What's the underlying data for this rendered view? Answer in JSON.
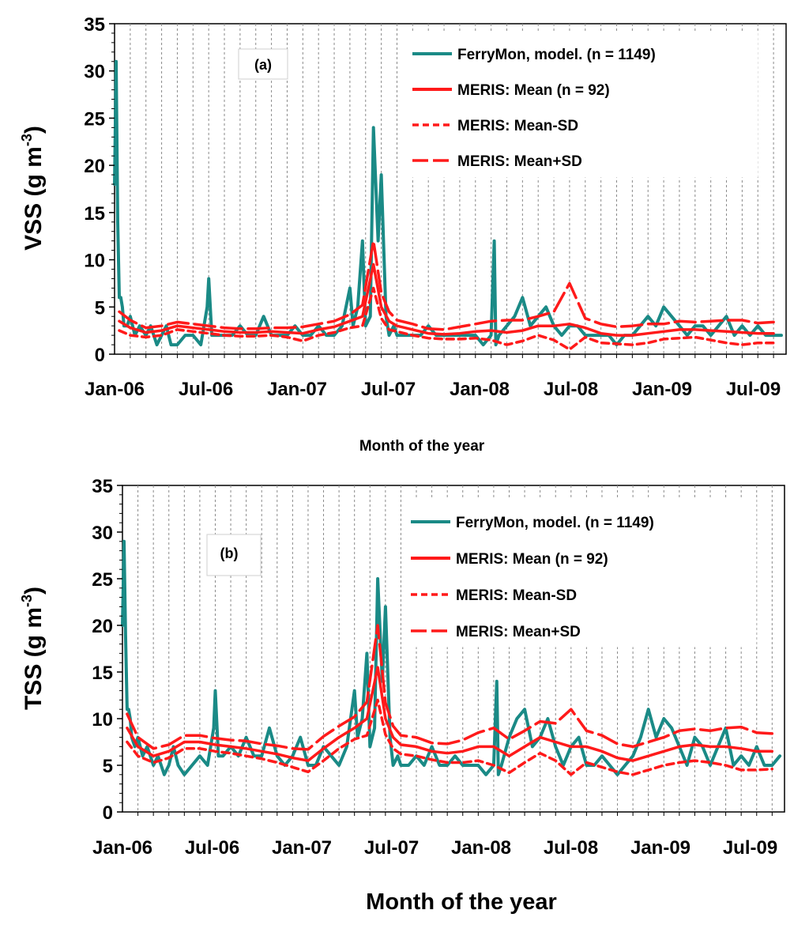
{
  "chart_data": [
    {
      "type": "line",
      "panel_label": "(a)",
      "ylabel_main": "VSS (g m",
      "ylabel_exp": "-3",
      "ylabel_close": ")",
      "xlabel": "Month of the year",
      "ylim": [
        0,
        35
      ],
      "yticks": [
        0,
        5,
        10,
        15,
        20,
        25,
        30,
        35
      ],
      "xlim": [
        0,
        42.8
      ],
      "xtick_labels": [
        "Jan-06",
        "Jul-06",
        "Jan-07",
        "Jul-07",
        "Jan-08",
        "Jul-08",
        "Jan-09",
        "Jul-09"
      ],
      "grid": true,
      "legend": [
        {
          "label": "FerryMon, model. (n = 1149)",
          "color": "#1a8a86",
          "style": "solid"
        },
        {
          "label": "MERIS: Mean (n = 92)",
          "color": "#ff1a1a",
          "style": "solid"
        },
        {
          "label": "MERIS: Mean-SD",
          "color": "#ff1a1a",
          "style": "dashed"
        },
        {
          "label": "MERIS: Mean+SD",
          "color": "#ff1a1a",
          "style": "longdash"
        }
      ],
      "series": [
        {
          "name": "FerryMon, model. (n = 1149)",
          "color": "#1a8a86",
          "x": [
            0.0,
            0.1,
            0.2,
            0.3,
            0.4,
            0.5,
            0.6,
            0.8,
            1.0,
            1.3,
            1.6,
            2.0,
            2.3,
            2.7,
            3.0,
            3.3,
            3.6,
            4.0,
            4.5,
            5.0,
            5.5,
            5.9,
            6.0,
            6.2,
            6.5,
            7.0,
            7.5,
            8.0,
            8.5,
            9.0,
            9.5,
            10.0,
            10.5,
            11.0,
            11.5,
            12.0,
            12.5,
            13.0,
            13.5,
            14.0,
            14.5,
            15.0,
            15.2,
            15.5,
            15.8,
            16.0,
            16.3,
            16.5,
            16.8,
            17.0,
            17.3,
            17.5,
            17.8,
            18.0,
            18.5,
            19.0,
            19.5,
            20.0,
            20.5,
            21.0,
            21.5,
            22.0,
            22.5,
            23.0,
            23.5,
            24.0,
            24.2,
            24.3,
            24.5,
            25.0,
            25.5,
            26.0,
            26.5,
            27.0,
            27.5,
            28.0,
            28.5,
            29.0,
            29.5,
            30.0,
            30.5,
            31.0,
            31.5,
            32.0,
            32.5,
            33.0,
            33.5,
            34.0,
            34.5,
            35.0,
            35.5,
            36.0,
            36.5,
            37.0,
            37.5,
            38.0,
            38.5,
            39.0,
            39.5,
            40.0,
            40.5,
            41.0,
            41.5,
            42.0,
            42.5
          ],
          "y": [
            18,
            31,
            14,
            6,
            6,
            5,
            3,
            3,
            4,
            2,
            3,
            2,
            3,
            1,
            2,
            3,
            1,
            1,
            2,
            2,
            1,
            5,
            8,
            2,
            2,
            2,
            2,
            3,
            2,
            2,
            4,
            2,
            2,
            2,
            3,
            2,
            2,
            3,
            2,
            2,
            3,
            7,
            3,
            5,
            12,
            3,
            4,
            24,
            12,
            19,
            4,
            2,
            3,
            2,
            2,
            2,
            2,
            3,
            2,
            2,
            2,
            2,
            2,
            2,
            1,
            2,
            12,
            1,
            2,
            3,
            4,
            6,
            3,
            4,
            5,
            3,
            2,
            3,
            3,
            2,
            2,
            2,
            2,
            1,
            2,
            2,
            3,
            4,
            3,
            5,
            4,
            3,
            2,
            3,
            3,
            2,
            3,
            4,
            2,
            3,
            2,
            3,
            2,
            2,
            2
          ]
        },
        {
          "name": "MERIS: Mean (n = 92)",
          "color": "#ff1a1a",
          "x": [
            0.3,
            1.0,
            2.0,
            3.0,
            4.0,
            5.0,
            6.0,
            7.0,
            8.0,
            9.0,
            10.0,
            11.0,
            12.0,
            13.0,
            14.0,
            15.0,
            15.8,
            16.5,
            17.0,
            17.5,
            18.0,
            19.0,
            20.0,
            21.0,
            22.0,
            23.0,
            24.0,
            25.0,
            26.0,
            27.0,
            28.0,
            29.0,
            30.0,
            31.0,
            32.0,
            33.0,
            34.0,
            35.0,
            36.0,
            37.0,
            38.0,
            39.0,
            40.0,
            41.0,
            42.0
          ],
          "y": [
            3.5,
            2.8,
            2.3,
            2.5,
            3.0,
            2.8,
            2.6,
            2.4,
            2.3,
            2.3,
            2.4,
            2.3,
            2.2,
            2.6,
            2.9,
            3.5,
            4.0,
            9.5,
            5.0,
            3.5,
            3.0,
            2.6,
            2.2,
            2.1,
            2.2,
            2.4,
            2.5,
            2.3,
            2.5,
            3.0,
            3.0,
            3.2,
            2.8,
            2.2,
            2.0,
            2.0,
            2.2,
            2.4,
            2.6,
            2.6,
            2.5,
            2.4,
            2.3,
            2.2,
            2.2
          ]
        },
        {
          "name": "MERIS: Mean-SD",
          "color": "#ff1a1a",
          "x": [
            0.3,
            1.0,
            2.0,
            3.0,
            4.0,
            5.0,
            6.0,
            7.0,
            8.0,
            9.0,
            10.0,
            11.0,
            12.0,
            13.0,
            14.0,
            15.0,
            15.8,
            16.5,
            17.0,
            17.5,
            18.0,
            19.0,
            20.0,
            21.0,
            22.0,
            23.0,
            24.0,
            25.0,
            26.0,
            27.0,
            28.0,
            29.0,
            30.0,
            31.0,
            32.0,
            33.0,
            34.0,
            35.0,
            36.0,
            37.0,
            38.0,
            39.0,
            40.0,
            41.0,
            42.0
          ],
          "y": [
            2.5,
            2.0,
            1.8,
            2.0,
            2.6,
            2.4,
            2.2,
            2.0,
            1.9,
            1.9,
            2.0,
            1.8,
            1.4,
            2.0,
            2.3,
            2.8,
            3.0,
            7.0,
            3.8,
            2.6,
            2.4,
            2.0,
            1.7,
            1.6,
            1.6,
            1.7,
            1.5,
            1.0,
            1.4,
            2.0,
            1.5,
            0.5,
            1.8,
            1.2,
            1.1,
            1.0,
            1.2,
            1.6,
            1.7,
            1.8,
            1.5,
            1.2,
            1.0,
            1.2,
            1.2
          ]
        },
        {
          "name": "MERIS: Mean+SD",
          "color": "#ff1a1a",
          "x": [
            0.3,
            1.0,
            2.0,
            3.0,
            4.0,
            5.0,
            6.0,
            7.0,
            8.0,
            9.0,
            10.0,
            11.0,
            12.0,
            13.0,
            14.0,
            15.0,
            15.8,
            16.5,
            17.0,
            17.5,
            18.0,
            19.0,
            20.0,
            21.0,
            22.0,
            23.0,
            24.0,
            25.0,
            26.0,
            27.0,
            28.0,
            29.0,
            30.0,
            31.0,
            32.0,
            33.0,
            34.0,
            35.0,
            36.0,
            37.0,
            38.0,
            39.0,
            40.0,
            41.0,
            42.0
          ],
          "y": [
            4.5,
            3.6,
            2.8,
            3.0,
            3.4,
            3.2,
            3.0,
            2.8,
            2.7,
            2.7,
            2.8,
            2.8,
            2.9,
            3.2,
            3.5,
            4.2,
            5.2,
            12.0,
            6.5,
            4.5,
            3.6,
            3.2,
            2.7,
            2.6,
            2.9,
            3.2,
            3.5,
            3.6,
            3.6,
            4.0,
            4.5,
            7.5,
            3.8,
            3.2,
            2.9,
            3.0,
            3.2,
            3.2,
            3.5,
            3.4,
            3.5,
            3.6,
            3.6,
            3.3,
            3.4
          ]
        }
      ]
    },
    {
      "type": "line",
      "panel_label": "(b)",
      "ylabel_main": "TSS (g m",
      "ylabel_exp": "-3",
      "ylabel_close": ")",
      "xlabel": "Month of the year",
      "ylim": [
        0,
        35
      ],
      "yticks": [
        0,
        5,
        10,
        15,
        20,
        25,
        30,
        35
      ],
      "xlim": [
        0,
        42.8
      ],
      "xtick_labels": [
        "Jan-06",
        "Jul-06",
        "Jan-07",
        "Jul-07",
        "Jan-08",
        "Jul-08",
        "Jan-09",
        "Jul-09"
      ],
      "grid": true,
      "legend": [
        {
          "label": "FerryMon, model. (n = 1149)",
          "color": "#1a8a86",
          "style": "solid"
        },
        {
          "label": "MERIS: Mean (n = 92)",
          "color": "#ff1a1a",
          "style": "solid"
        },
        {
          "label": "MERIS: Mean-SD",
          "color": "#ff1a1a",
          "style": "dashed"
        },
        {
          "label": "MERIS: Mean+SD",
          "color": "#ff1a1a",
          "style": "longdash"
        }
      ],
      "series": [
        {
          "name": "FerryMon, model. (n = 1149)",
          "color": "#1a8a86",
          "x": [
            0.0,
            0.1,
            0.2,
            0.3,
            0.4,
            0.5,
            0.6,
            0.8,
            1.0,
            1.3,
            1.6,
            2.0,
            2.3,
            2.7,
            3.0,
            3.3,
            3.6,
            4.0,
            4.5,
            5.0,
            5.5,
            5.9,
            6.0,
            6.2,
            6.5,
            7.0,
            7.5,
            8.0,
            8.5,
            9.0,
            9.5,
            10.0,
            10.5,
            11.0,
            11.5,
            12.0,
            12.5,
            13.0,
            13.5,
            14.0,
            14.5,
            15.0,
            15.2,
            15.5,
            15.8,
            16.0,
            16.3,
            16.5,
            16.8,
            17.0,
            17.3,
            17.5,
            17.8,
            18.0,
            18.5,
            19.0,
            19.5,
            20.0,
            20.5,
            21.0,
            21.5,
            22.0,
            22.5,
            23.0,
            23.5,
            24.0,
            24.2,
            24.3,
            24.5,
            25.0,
            25.5,
            26.0,
            26.5,
            27.0,
            27.5,
            28.0,
            28.5,
            29.0,
            29.5,
            30.0,
            30.5,
            31.0,
            31.5,
            32.0,
            32.5,
            33.0,
            33.5,
            34.0,
            34.5,
            35.0,
            35.5,
            36.0,
            36.5,
            37.0,
            37.5,
            38.0,
            38.5,
            39.0,
            39.5,
            40.0,
            40.5,
            41.0,
            41.5,
            42.0,
            42.5
          ],
          "y": [
            20,
            29,
            19,
            11,
            11,
            10,
            8,
            7,
            8,
            6,
            7,
            5,
            6,
            4,
            5,
            7,
            5,
            4,
            5,
            6,
            5,
            9,
            13,
            6,
            6,
            7,
            6,
            8,
            6,
            6,
            9,
            6,
            5,
            6,
            8,
            5,
            5,
            7,
            6,
            5,
            7,
            13,
            8,
            10,
            17,
            7,
            9,
            25,
            14,
            22,
            8,
            5,
            6,
            5,
            5,
            6,
            5,
            7,
            5,
            5,
            6,
            5,
            5,
            5,
            4,
            5,
            14,
            4,
            5,
            8,
            10,
            11,
            7,
            8,
            10,
            7,
            5,
            7,
            8,
            5,
            5,
            6,
            5,
            4,
            5,
            6,
            8,
            11,
            8,
            10,
            9,
            7,
            5,
            8,
            7,
            5,
            7,
            9,
            5,
            6,
            5,
            7,
            5,
            5,
            6
          ]
        },
        {
          "name": "MERIS: Mean (n = 92)",
          "color": "#ff1a1a",
          "x": [
            0.3,
            1.0,
            2.0,
            3.0,
            4.0,
            5.0,
            6.0,
            7.0,
            8.0,
            9.0,
            10.0,
            11.0,
            12.0,
            13.0,
            14.0,
            15.0,
            15.8,
            16.5,
            17.0,
            17.5,
            18.0,
            19.0,
            20.0,
            21.0,
            22.0,
            23.0,
            24.0,
            25.0,
            26.0,
            27.0,
            28.0,
            29.0,
            30.0,
            31.0,
            32.0,
            33.0,
            34.0,
            35.0,
            36.0,
            37.0,
            38.0,
            39.0,
            40.0,
            41.0,
            42.0
          ],
          "y": [
            9.0,
            7.0,
            6.0,
            6.5,
            7.5,
            7.5,
            7.2,
            7.0,
            6.8,
            6.5,
            6.2,
            5.8,
            5.5,
            6.8,
            8.0,
            9.0,
            10.0,
            15.5,
            10.0,
            8.0,
            7.2,
            7.0,
            6.5,
            6.3,
            6.5,
            7.0,
            7.0,
            6.0,
            7.0,
            8.0,
            7.5,
            7.0,
            7.0,
            6.5,
            5.8,
            5.5,
            6.0,
            6.5,
            7.0,
            7.2,
            7.0,
            7.0,
            6.8,
            6.5,
            6.5
          ]
        },
        {
          "name": "MERIS: Mean-SD",
          "color": "#ff1a1a",
          "x": [
            0.3,
            1.0,
            2.0,
            3.0,
            4.0,
            5.0,
            6.0,
            7.0,
            8.0,
            9.0,
            10.0,
            11.0,
            12.0,
            13.0,
            14.0,
            15.0,
            15.8,
            16.5,
            17.0,
            17.5,
            18.0,
            19.0,
            20.0,
            21.0,
            22.0,
            23.0,
            24.0,
            25.0,
            26.0,
            27.0,
            28.0,
            29.0,
            30.0,
            31.0,
            32.0,
            33.0,
            34.0,
            35.0,
            36.0,
            37.0,
            38.0,
            39.0,
            40.0,
            41.0,
            42.0
          ],
          "y": [
            7.5,
            6.0,
            5.3,
            5.8,
            6.8,
            6.8,
            6.5,
            6.3,
            6.0,
            5.7,
            5.3,
            4.8,
            4.3,
            5.5,
            6.8,
            7.8,
            8.2,
            12.0,
            8.3,
            6.8,
            6.2,
            6.0,
            5.6,
            5.3,
            5.3,
            5.5,
            5.0,
            4.2,
            5.3,
            6.3,
            5.5,
            4.0,
            5.3,
            4.8,
            4.3,
            4.0,
            4.5,
            5.0,
            5.3,
            5.5,
            5.3,
            5.0,
            4.5,
            4.5,
            4.6
          ]
        },
        {
          "name": "MERIS: Mean+SD",
          "color": "#ff1a1a",
          "x": [
            0.3,
            1.0,
            2.0,
            3.0,
            4.0,
            5.0,
            6.0,
            7.0,
            8.0,
            9.0,
            10.0,
            11.0,
            12.0,
            13.0,
            14.0,
            15.0,
            15.8,
            16.5,
            17.0,
            17.5,
            18.0,
            19.0,
            20.0,
            21.0,
            22.0,
            23.0,
            24.0,
            25.0,
            26.0,
            27.0,
            28.0,
            29.0,
            30.0,
            31.0,
            32.0,
            33.0,
            34.0,
            35.0,
            36.0,
            37.0,
            38.0,
            39.0,
            40.0,
            41.0,
            42.0
          ],
          "y": [
            10.5,
            8.0,
            6.8,
            7.2,
            8.2,
            8.2,
            7.9,
            7.7,
            7.6,
            7.3,
            7.1,
            6.8,
            6.7,
            8.1,
            9.2,
            10.2,
            11.8,
            20.0,
            11.7,
            9.2,
            8.2,
            8.0,
            7.4,
            7.3,
            7.7,
            8.5,
            9.0,
            7.8,
            8.7,
            9.7,
            9.5,
            11.0,
            8.7,
            8.2,
            7.3,
            7.0,
            7.5,
            8.0,
            8.7,
            8.9,
            8.7,
            9.0,
            9.1,
            8.5,
            8.4
          ]
        }
      ]
    }
  ]
}
